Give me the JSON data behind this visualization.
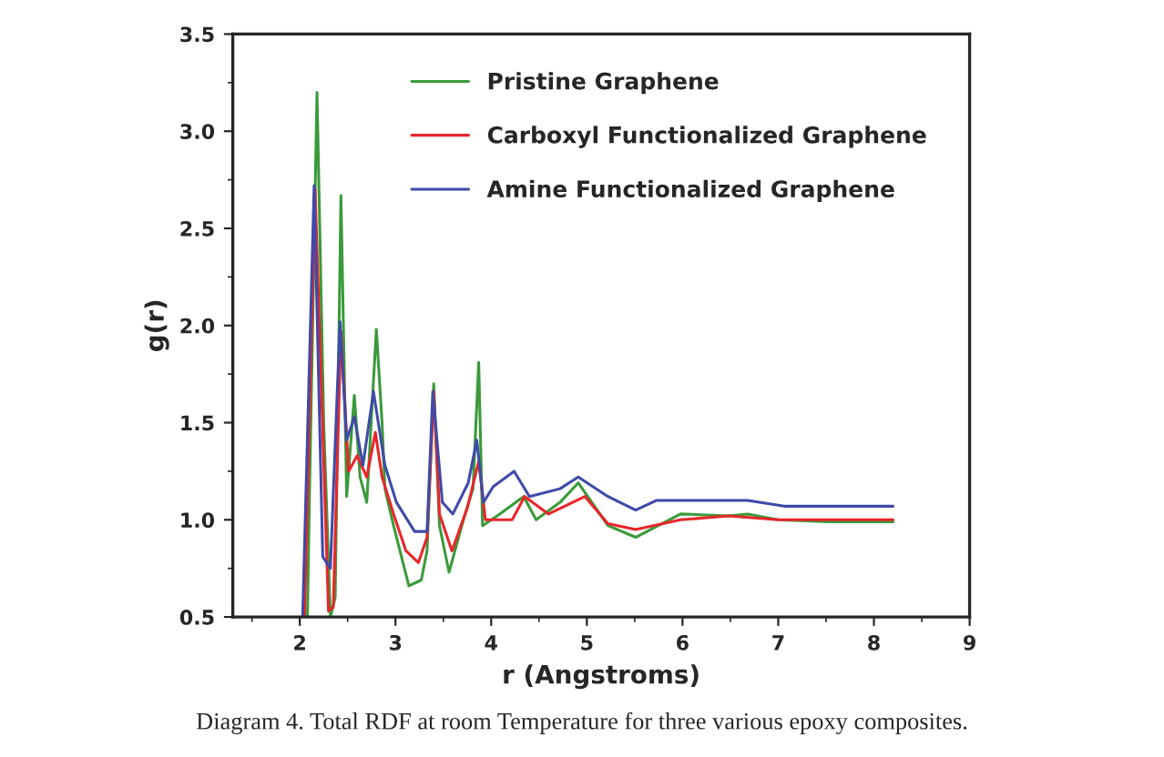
{
  "chart_data": {
    "type": "line",
    "xlabel": "r (Angstroms)",
    "ylabel": "g(r)",
    "xlim": [
      1.3,
      9
    ],
    "xticks": [
      2,
      3,
      4,
      5,
      6,
      7,
      8,
      9
    ],
    "ylim": [
      0.5,
      3.5
    ],
    "yticks": [
      0.5,
      {
        "value": 1,
        "label": "1.0"
      },
      1.5,
      {
        "value": 2,
        "label": "2.0"
      },
      2.5,
      {
        "value": 3,
        "label": "3.0"
      },
      3.5
    ],
    "grid": false,
    "legend": "top right",
    "marker": "none",
    "line_style": "solid",
    "annotations": [
      "Diagram 4. Total RDF at room Temperature for three various epoxy composites."
    ],
    "series": [
      {
        "name": "Pristine Graphene",
        "color": "#3a9a3a",
        "x": [
          2.08,
          2.1,
          2.18,
          2.25,
          2.32,
          2.37,
          2.43,
          2.49,
          2.57,
          2.63,
          2.7,
          2.8,
          2.86,
          2.89,
          2.98,
          3.14,
          3.27,
          3.33,
          3.4,
          3.46,
          3.56,
          3.71,
          3.81,
          3.87,
          3.91,
          4.09,
          4.34,
          4.47,
          4.72,
          4.91,
          5.22,
          5.51,
          5.98,
          6.48,
          6.68,
          7.0,
          7.52,
          8.2
        ],
        "values": [
          0.5,
          1.09,
          3.2,
          1.5,
          0.5,
          0.6,
          2.67,
          1.12,
          1.64,
          1.22,
          1.09,
          1.98,
          1.5,
          1.16,
          0.97,
          0.66,
          0.69,
          0.84,
          1.7,
          0.97,
          0.73,
          1.0,
          1.16,
          1.81,
          0.97,
          1.03,
          1.12,
          1.0,
          1.09,
          1.19,
          0.97,
          0.91,
          1.03,
          1.02,
          1.03,
          1.0,
          0.99,
          0.99
        ]
      },
      {
        "name": "Carboxyl Functionalized Graphene",
        "color": "#e8262a",
        "x": [
          2.05,
          2.16,
          2.3,
          2.35,
          2.43,
          2.51,
          2.6,
          2.7,
          2.79,
          2.86,
          2.98,
          3.11,
          3.24,
          3.33,
          3.4,
          3.46,
          3.59,
          3.75,
          3.87,
          3.94,
          4.22,
          4.35,
          4.6,
          4.98,
          5.22,
          5.51,
          5.98,
          6.48,
          7.0,
          7.52,
          8.2
        ],
        "values": [
          0.5,
          2.7,
          0.53,
          0.55,
          1.97,
          1.25,
          1.33,
          1.22,
          1.45,
          1.22,
          1.03,
          0.84,
          0.78,
          0.91,
          1.66,
          1.03,
          0.84,
          1.06,
          1.3,
          1.0,
          1.0,
          1.12,
          1.03,
          1.12,
          0.98,
          0.95,
          1.0,
          1.02,
          1.0,
          1.0,
          1.0
        ]
      },
      {
        "name": "Amine Functionalized Graphene",
        "color": "#3f4aa8",
        "x": [
          2.03,
          2.15,
          2.24,
          2.32,
          2.42,
          2.49,
          2.57,
          2.66,
          2.77,
          2.89,
          3.01,
          3.2,
          3.33,
          3.39,
          3.49,
          3.6,
          3.76,
          3.85,
          3.92,
          4.02,
          4.24,
          4.4,
          4.72,
          4.91,
          5.22,
          5.51,
          5.73,
          6.24,
          6.68,
          7.06,
          7.57,
          8.2
        ],
        "values": [
          0.5,
          2.72,
          0.81,
          0.75,
          2.02,
          1.41,
          1.53,
          1.28,
          1.66,
          1.28,
          1.09,
          0.94,
          0.94,
          1.66,
          1.09,
          1.03,
          1.19,
          1.41,
          1.09,
          1.17,
          1.25,
          1.12,
          1.16,
          1.22,
          1.12,
          1.05,
          1.1,
          1.1,
          1.1,
          1.07,
          1.07,
          1.07
        ]
      }
    ]
  }
}
